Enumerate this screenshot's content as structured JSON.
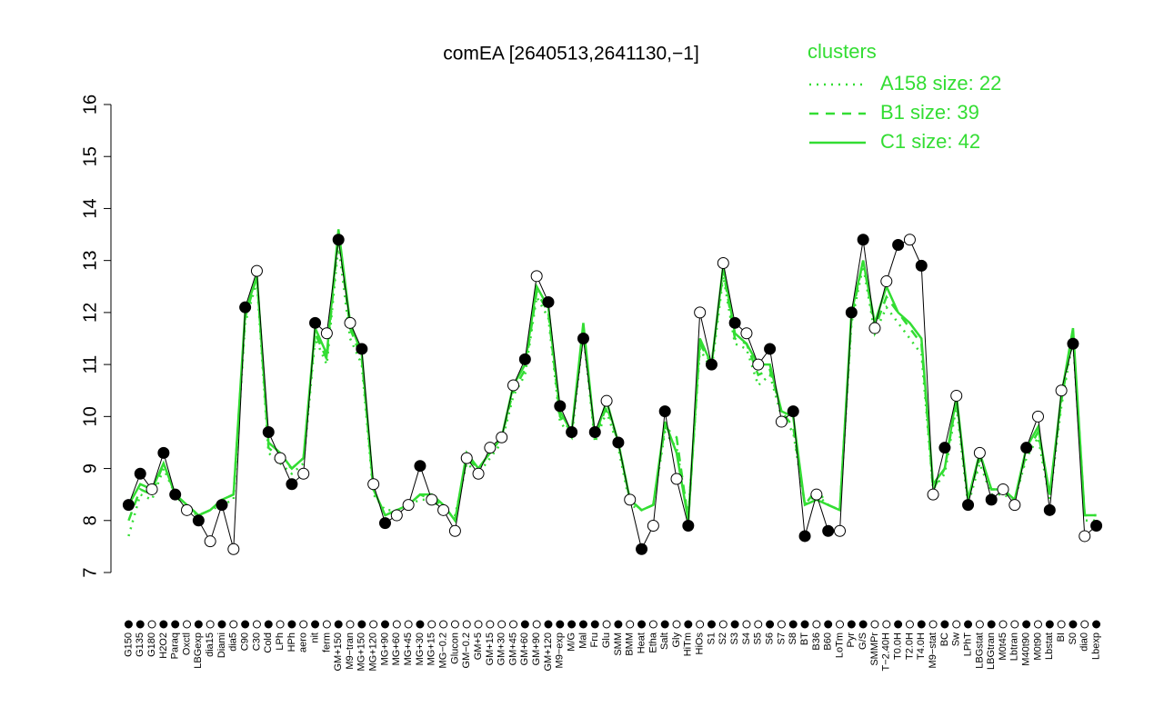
{
  "chart_data": {
    "type": "line",
    "title": "comEA [2640513,2641130,−1]",
    "legend_title": "clusters",
    "ylim": [
      7,
      16
    ],
    "yticks": [
      7,
      8,
      9,
      10,
      11,
      12,
      13,
      14,
      15,
      16
    ],
    "categories": [
      "G150",
      "G135",
      "G180",
      "H2O2",
      "Paraq",
      "Oxctl",
      "LBGexp",
      "dia15",
      "Diami",
      "dia5",
      "C90",
      "C30",
      "Cold",
      "LPh",
      "HPh",
      "aero",
      "nit",
      "ferm",
      "GM+150",
      "M9−tran",
      "MG+150",
      "MG+120",
      "MG+90",
      "MG+60",
      "MG+45",
      "MG+30",
      "MG+15",
      "MG−0.2",
      "Glucon",
      "GM−0.2",
      "GM+5",
      "GM+15",
      "GM+30",
      "GM+45",
      "GM+60",
      "GM+90",
      "GM+120",
      "M9−exp",
      "M/G",
      "Mal",
      "Fru",
      "Glu",
      "SMM",
      "BMM",
      "Heat",
      "Etha",
      "Salt",
      "Gly",
      "HiTm",
      "HiOs",
      "S1",
      "S2",
      "S3",
      "S4",
      "S5",
      "S6",
      "S7",
      "S8",
      "BT",
      "B36",
      "B60",
      "LoTm",
      "Pyr",
      "G/S",
      "SMMPr",
      "T−2.40H",
      "T0.0H",
      "T2.0H",
      "T4.0H",
      "M9−stat",
      "BC",
      "Sw",
      "LPhT",
      "LBGstat",
      "LBGtran",
      "M0t45",
      "Lbtran",
      "M40t90",
      "M0t90",
      "Lbstat",
      "BI",
      "S0",
      "dia0",
      "Lbexp"
    ],
    "points": {
      "color": "#000000",
      "values": [
        8.3,
        8.9,
        8.6,
        9.3,
        8.5,
        8.2,
        8.0,
        7.6,
        8.3,
        7.45,
        12.1,
        12.8,
        9.7,
        9.2,
        8.7,
        8.9,
        11.8,
        11.6,
        13.4,
        11.8,
        11.3,
        8.7,
        7.95,
        8.1,
        8.3,
        9.05,
        8.4,
        8.2,
        7.8,
        9.2,
        8.9,
        9.4,
        9.6,
        10.6,
        11.1,
        12.7,
        12.2,
        10.2,
        9.7,
        11.5,
        9.7,
        10.3,
        9.5,
        8.4,
        7.45,
        7.9,
        10.1,
        8.8,
        7.9,
        12.0,
        11.0,
        12.95,
        11.8,
        11.6,
        11.0,
        11.3,
        9.9,
        10.1,
        7.7,
        8.5,
        7.8,
        7.8,
        12.0,
        13.4,
        11.7,
        12.6,
        13.3,
        13.4,
        12.9,
        8.5,
        9.4,
        10.4,
        8.3,
        9.3,
        8.4,
        8.6,
        8.3,
        9.4,
        10.0,
        8.2,
        10.5,
        11.4,
        7.7,
        7.9
      ],
      "filled": [
        true,
        true,
        false,
        true,
        true,
        false,
        true,
        false,
        true,
        false,
        true,
        false,
        true,
        false,
        true,
        false,
        true,
        false,
        true,
        false,
        true,
        false,
        true,
        false,
        false,
        true,
        false,
        false,
        false,
        false,
        false,
        false,
        false,
        false,
        true,
        false,
        true,
        true,
        true,
        true,
        true,
        false,
        true,
        false,
        true,
        false,
        true,
        false,
        true,
        false,
        true,
        false,
        true,
        false,
        false,
        true,
        false,
        true,
        true,
        false,
        true,
        false,
        true,
        true,
        false,
        false,
        true,
        false,
        true,
        false,
        true,
        false,
        true,
        false,
        true,
        false,
        false,
        true,
        false,
        true,
        false,
        true,
        false,
        true
      ]
    },
    "series": [
      {
        "name": "A158 size: 22",
        "color": "#33dd33",
        "dash": "dotted",
        "values": [
          7.7,
          8.5,
          8.4,
          9.0,
          8.5,
          8.2,
          8.1,
          8.2,
          8.3,
          8.4,
          11.8,
          12.6,
          9.3,
          9.1,
          8.9,
          9.1,
          11.5,
          11.0,
          13.3,
          11.5,
          11.0,
          8.5,
          8.2,
          8.2,
          8.3,
          8.4,
          8.4,
          8.2,
          8.1,
          9.1,
          8.9,
          9.2,
          9.5,
          10.4,
          10.8,
          12.3,
          11.9,
          9.9,
          9.6,
          11.6,
          9.5,
          10.1,
          9.4,
          8.3,
          8.2,
          8.3,
          9.7,
          9.4,
          8.1,
          11.3,
          10.9,
          12.7,
          11.4,
          11.3,
          10.6,
          10.8,
          10.0,
          9.7,
          8.3,
          8.5,
          8.3,
          8.2,
          11.8,
          12.9,
          11.6,
          12.1,
          11.8,
          11.5,
          11.2,
          8.6,
          8.9,
          10.2,
          8.3,
          9.1,
          8.5,
          8.5,
          8.4,
          9.2,
          9.6,
          8.4,
          10.2,
          11.5,
          8.0,
          8.0
        ]
      },
      {
        "name": "B1 size: 39",
        "color": "#33dd33",
        "dash": "dashed",
        "values": [
          8.0,
          8.6,
          8.5,
          9.1,
          8.5,
          8.3,
          8.1,
          8.2,
          8.4,
          8.5,
          11.9,
          12.7,
          9.4,
          9.2,
          9.0,
          9.2,
          11.6,
          11.1,
          13.5,
          11.7,
          11.1,
          8.6,
          8.1,
          8.2,
          8.3,
          8.5,
          8.4,
          8.3,
          8.0,
          9.2,
          9.0,
          9.3,
          9.6,
          10.5,
          10.9,
          12.4,
          12.0,
          10.0,
          9.7,
          11.7,
          9.6,
          10.2,
          9.5,
          8.4,
          8.2,
          8.3,
          9.8,
          9.6,
          8.0,
          11.4,
          11.0,
          12.8,
          11.5,
          11.4,
          10.8,
          10.9,
          10.1,
          9.8,
          8.3,
          8.6,
          8.3,
          8.2,
          11.9,
          13.0,
          11.7,
          12.3,
          12.0,
          11.7,
          11.4,
          8.6,
          9.0,
          10.3,
          8.4,
          9.2,
          8.6,
          8.6,
          8.4,
          9.3,
          9.7,
          8.5,
          10.3,
          11.6,
          8.1,
          8.1
        ]
      },
      {
        "name": "C1 size: 42",
        "color": "#33dd33",
        "dash": "solid",
        "values": [
          8.3,
          8.7,
          8.6,
          9.1,
          8.5,
          8.3,
          8.1,
          8.2,
          8.4,
          8.5,
          12.0,
          12.7,
          9.5,
          9.3,
          9.0,
          9.2,
          11.7,
          11.2,
          13.6,
          11.8,
          11.2,
          8.6,
          8.1,
          8.2,
          8.3,
          8.5,
          8.5,
          8.3,
          8.0,
          9.3,
          9.0,
          9.3,
          9.6,
          10.6,
          11.0,
          12.5,
          12.1,
          10.1,
          9.7,
          11.8,
          9.6,
          10.3,
          9.5,
          8.4,
          8.2,
          8.3,
          9.9,
          9.3,
          8.0,
          11.5,
          11.0,
          12.9,
          11.6,
          11.4,
          11.0,
          11.0,
          10.1,
          10.0,
          8.3,
          8.4,
          8.3,
          8.2,
          12.0,
          13.0,
          11.8,
          12.5,
          12.0,
          11.8,
          11.5,
          8.7,
          9.0,
          10.4,
          8.4,
          9.3,
          8.6,
          8.6,
          8.4,
          9.4,
          9.8,
          8.5,
          10.4,
          11.7,
          8.1,
          8.1
        ]
      }
    ]
  }
}
